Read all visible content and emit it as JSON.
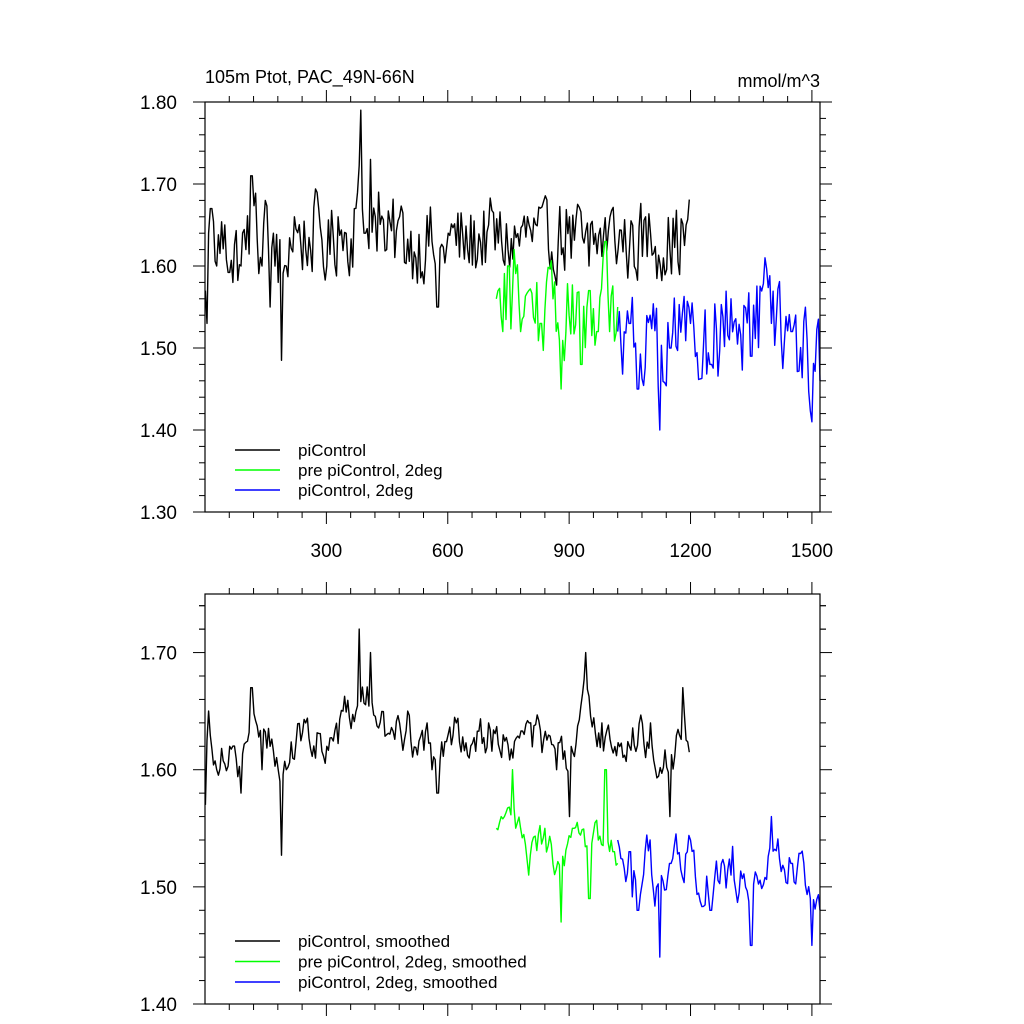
{
  "chart_data": [
    {
      "type": "line",
      "title": "105m Ptot, PAC_49N-66N",
      "units": "mmol/m^3",
      "xlim": [
        0,
        1520
      ],
      "ylim": [
        1.3,
        1.8
      ],
      "x_ticks": [
        300,
        600,
        900,
        1200,
        1500
      ],
      "x_tick_labels": [
        "300",
        "600",
        "900",
        "1200",
        "1500"
      ],
      "y_ticks": [
        1.3,
        1.4,
        1.5,
        1.6,
        1.7,
        1.8
      ],
      "y_tick_labels": [
        "1.30",
        "1.40",
        "1.50",
        "1.60",
        "1.70",
        "1.80"
      ],
      "legend_position": "bottom-left",
      "series": [
        {
          "name": "piControl",
          "color": "#000000",
          "x_start": 1,
          "x_end": 1200,
          "mean": 1.63,
          "amplitude": 0.06,
          "keypoints": [
            [
              1,
              1.57
            ],
            [
              5,
              1.53
            ],
            [
              10,
              1.64
            ],
            [
              15,
              1.67
            ],
            [
              30,
              1.6
            ],
            [
              50,
              1.65
            ],
            [
              70,
              1.58
            ],
            [
              90,
              1.6
            ],
            [
              100,
              1.62
            ],
            [
              115,
              1.71
            ],
            [
              140,
              1.6
            ],
            [
              150,
              1.68
            ],
            [
              160,
              1.55
            ],
            [
              170,
              1.64
            ],
            [
              180,
              1.58
            ],
            [
              190,
              1.485
            ],
            [
              200,
              1.6
            ],
            [
              220,
              1.66
            ],
            [
              250,
              1.62
            ],
            [
              280,
              1.67
            ],
            [
              300,
              1.6
            ],
            [
              330,
              1.66
            ],
            [
              350,
              1.64
            ],
            [
              370,
              1.67
            ],
            [
              385,
              1.79
            ],
            [
              395,
              1.64
            ],
            [
              410,
              1.73
            ],
            [
              430,
              1.69
            ],
            [
              450,
              1.62
            ],
            [
              480,
              1.66
            ],
            [
              520,
              1.61
            ],
            [
              560,
              1.63
            ],
            [
              575,
              1.55
            ],
            [
              600,
              1.64
            ],
            [
              650,
              1.62
            ],
            [
              700,
              1.65
            ],
            [
              750,
              1.62
            ],
            [
              800,
              1.65
            ],
            [
              850,
              1.62
            ],
            [
              900,
              1.66
            ],
            [
              950,
              1.6
            ],
            [
              1000,
              1.66
            ],
            [
              1050,
              1.62
            ],
            [
              1100,
              1.64
            ],
            [
              1150,
              1.62
            ],
            [
              1200,
              1.65
            ]
          ]
        },
        {
          "name": "pre piControl, 2deg",
          "color": "#00ff00",
          "x_start": 720,
          "x_end": 1020,
          "mean": 1.55,
          "amplitude": 0.06,
          "keypoints": [
            [
              720,
              1.56
            ],
            [
              735,
              1.52
            ],
            [
              750,
              1.6
            ],
            [
              765,
              1.62
            ],
            [
              780,
              1.52
            ],
            [
              800,
              1.57
            ],
            [
              830,
              1.53
            ],
            [
              860,
              1.56
            ],
            [
              880,
              1.45
            ],
            [
              900,
              1.54
            ],
            [
              930,
              1.48
            ],
            [
              950,
              1.57
            ],
            [
              970,
              1.52
            ],
            [
              990,
              1.63
            ],
            [
              1000,
              1.52
            ],
            [
              1020,
              1.55
            ]
          ]
        },
        {
          "name": "piControl, 2deg",
          "color": "#0000ff",
          "x_start": 1020,
          "x_end": 1520,
          "mean": 1.52,
          "amplitude": 0.07,
          "keypoints": [
            [
              1020,
              1.52
            ],
            [
              1050,
              1.53
            ],
            [
              1070,
              1.45
            ],
            [
              1100,
              1.54
            ],
            [
              1125,
              1.4
            ],
            [
              1150,
              1.5
            ],
            [
              1200,
              1.53
            ],
            [
              1250,
              1.48
            ],
            [
              1300,
              1.56
            ],
            [
              1350,
              1.49
            ],
            [
              1385,
              1.61
            ],
            [
              1400,
              1.53
            ],
            [
              1450,
              1.52
            ],
            [
              1500,
              1.41
            ],
            [
              1520,
              1.46
            ]
          ]
        }
      ]
    },
    {
      "type": "line",
      "title": "",
      "xlim": [
        0,
        1520
      ],
      "ylim": [
        1.4,
        1.75
      ],
      "x_ticks": [
        300,
        600,
        900,
        1200,
        1500
      ],
      "y_ticks": [
        1.4,
        1.5,
        1.6,
        1.7
      ],
      "y_tick_labels": [
        "1.40",
        "1.50",
        "1.60",
        "1.70"
      ],
      "legend_position": "bottom-left",
      "series": [
        {
          "name": "piControl, smoothed",
          "color": "#000000",
          "x_start": 1,
          "x_end": 1200,
          "mean": 1.625,
          "amplitude": 0.035,
          "keypoints": [
            [
              1,
              1.57
            ],
            [
              10,
              1.65
            ],
            [
              30,
              1.6
            ],
            [
              60,
              1.62
            ],
            [
              90,
              1.58
            ],
            [
              115,
              1.67
            ],
            [
              140,
              1.6
            ],
            [
              160,
              1.62
            ],
            [
              180,
              1.6
            ],
            [
              190,
              1.527
            ],
            [
              200,
              1.6
            ],
            [
              250,
              1.64
            ],
            [
              300,
              1.62
            ],
            [
              340,
              1.65
            ],
            [
              380,
              1.72
            ],
            [
              410,
              1.7
            ],
            [
              450,
              1.63
            ],
            [
              500,
              1.65
            ],
            [
              560,
              1.6
            ],
            [
              575,
              1.58
            ],
            [
              620,
              1.64
            ],
            [
              700,
              1.64
            ],
            [
              760,
              1.61
            ],
            [
              800,
              1.64
            ],
            [
              870,
              1.6
            ],
            [
              900,
              1.56
            ],
            [
              940,
              1.7
            ],
            [
              980,
              1.64
            ],
            [
              1050,
              1.62
            ],
            [
              1100,
              1.64
            ],
            [
              1150,
              1.56
            ],
            [
              1180,
              1.67
            ],
            [
              1200,
              1.63
            ]
          ]
        },
        {
          "name": "pre piControl, 2deg, smoothed",
          "color": "#00ff00",
          "x_start": 720,
          "x_end": 1020,
          "mean": 1.535,
          "amplitude": 0.03,
          "keypoints": [
            [
              720,
              1.55
            ],
            [
              740,
              1.56
            ],
            [
              760,
              1.6
            ],
            [
              780,
              1.55
            ],
            [
              800,
              1.51
            ],
            [
              840,
              1.55
            ],
            [
              880,
              1.47
            ],
            [
              910,
              1.55
            ],
            [
              950,
              1.49
            ],
            [
              990,
              1.6
            ],
            [
              1010,
              1.53
            ],
            [
              1020,
              1.52
            ]
          ]
        },
        {
          "name": "piControl, 2deg, smoothed",
          "color": "#0000ff",
          "x_start": 1020,
          "x_end": 1520,
          "mean": 1.515,
          "amplitude": 0.04,
          "keypoints": [
            [
              1020,
              1.54
            ],
            [
              1050,
              1.53
            ],
            [
              1070,
              1.48
            ],
            [
              1100,
              1.54
            ],
            [
              1125,
              1.44
            ],
            [
              1150,
              1.52
            ],
            [
              1200,
              1.54
            ],
            [
              1250,
              1.48
            ],
            [
              1300,
              1.51
            ],
            [
              1350,
              1.45
            ],
            [
              1400,
              1.56
            ],
            [
              1450,
              1.52
            ],
            [
              1500,
              1.45
            ],
            [
              1520,
              1.48
            ]
          ]
        }
      ]
    }
  ]
}
